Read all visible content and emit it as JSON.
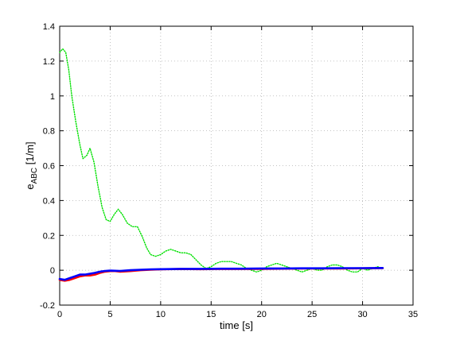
{
  "chart_data": {
    "type": "line",
    "title": "",
    "xlabel": "time [s]",
    "ylabel_main": "e",
    "ylabel_sub": "ABC",
    "ylabel_unit": " [1/m]",
    "xlim": [
      0,
      35
    ],
    "ylim": [
      -0.2,
      1.4
    ],
    "xticks": [
      0,
      5,
      10,
      15,
      20,
      25,
      30,
      35
    ],
    "yticks": [
      -0.2,
      0,
      0.2,
      0.4,
      0.6,
      0.8,
      1,
      1.2,
      1.4
    ],
    "xtick_labels": [
      "0",
      "5",
      "10",
      "15",
      "20",
      "25",
      "30",
      "35"
    ],
    "ytick_labels": [
      "-0.2",
      "0",
      "0.2",
      "0.4",
      "0.6",
      "0.8",
      "1",
      "1.2",
      "1.4"
    ],
    "grid": true,
    "legend": "none",
    "series": [
      {
        "color": "#00e000",
        "style": "dotted",
        "x": [
          0,
          0.3,
          0.6,
          0.9,
          1.2,
          1.6,
          2.0,
          2.3,
          2.7,
          3.0,
          3.4,
          3.8,
          4.2,
          4.6,
          5.0,
          5.4,
          5.8,
          6.2,
          6.7,
          7.2,
          7.7,
          8.2,
          8.6,
          9.0,
          9.5,
          10.0,
          10.5,
          11.0,
          11.5,
          12.0,
          12.5,
          13.0,
          13.5,
          14.0,
          14.5,
          15.0,
          15.5,
          16.0,
          16.5,
          17.0,
          17.5,
          18.0,
          18.5,
          19.0,
          19.5,
          20.0,
          20.5,
          21.0,
          21.5,
          22.0,
          22.5,
          23.0,
          23.5,
          24.0,
          24.5,
          25.0,
          25.5,
          26.0,
          26.5,
          27.0,
          27.5,
          28.0,
          28.5,
          29.0,
          29.5,
          30.0,
          30.5,
          31.0,
          31.5,
          32.0
        ],
        "y": [
          1.25,
          1.27,
          1.25,
          1.15,
          1.0,
          0.85,
          0.72,
          0.64,
          0.66,
          0.7,
          0.62,
          0.48,
          0.36,
          0.29,
          0.28,
          0.32,
          0.35,
          0.32,
          0.27,
          0.25,
          0.25,
          0.19,
          0.13,
          0.09,
          0.08,
          0.09,
          0.11,
          0.12,
          0.11,
          0.1,
          0.1,
          0.09,
          0.06,
          0.03,
          0.01,
          0.02,
          0.04,
          0.05,
          0.05,
          0.05,
          0.04,
          0.03,
          0.01,
          0.0,
          -0.01,
          0.0,
          0.02,
          0.03,
          0.04,
          0.03,
          0.02,
          0.01,
          0.0,
          -0.01,
          0.0,
          0.01,
          0.0,
          0.0,
          0.02,
          0.03,
          0.03,
          0.02,
          0.0,
          -0.01,
          -0.01,
          0.01,
          0.0,
          0.01,
          0.02,
          0.01
        ]
      },
      {
        "color": "#ff0000",
        "style": "solid",
        "x": [
          0,
          0.5,
          1.0,
          1.5,
          2.0,
          2.5,
          3.0,
          3.5,
          4.0,
          4.5,
          5.0,
          5.5,
          6.0,
          7.0,
          8.0,
          9.0,
          10.0,
          12.0,
          14.0,
          16.0,
          18.0,
          20.0,
          22.0,
          24.0,
          26.0,
          28.0,
          30.0,
          32.0
        ],
        "y": [
          -0.055,
          -0.06,
          -0.055,
          -0.045,
          -0.035,
          -0.03,
          -0.03,
          -0.025,
          -0.015,
          -0.008,
          -0.005,
          -0.005,
          -0.008,
          -0.005,
          0.0,
          0.003,
          0.005,
          0.007,
          0.006,
          0.008,
          0.007,
          0.008,
          0.009,
          0.01,
          0.01,
          0.01,
          0.011,
          0.012
        ]
      },
      {
        "color": "#0000ff",
        "style": "solid",
        "x": [
          0,
          0.5,
          1.0,
          1.5,
          2.0,
          2.5,
          3.0,
          3.5,
          4.0,
          4.5,
          5.0,
          5.5,
          6.0,
          7.0,
          8.0,
          9.0,
          10.0,
          12.0,
          14.0,
          16.0,
          18.0,
          20.0,
          22.0,
          24.0,
          26.0,
          28.0,
          30.0,
          32.0
        ],
        "y": [
          -0.05,
          -0.055,
          -0.045,
          -0.035,
          -0.025,
          -0.025,
          -0.02,
          -0.015,
          -0.008,
          -0.004,
          -0.002,
          -0.003,
          -0.004,
          0.0,
          0.003,
          0.005,
          0.006,
          0.008,
          0.008,
          0.009,
          0.009,
          0.01,
          0.01,
          0.011,
          0.011,
          0.012,
          0.012,
          0.013
        ]
      }
    ]
  }
}
